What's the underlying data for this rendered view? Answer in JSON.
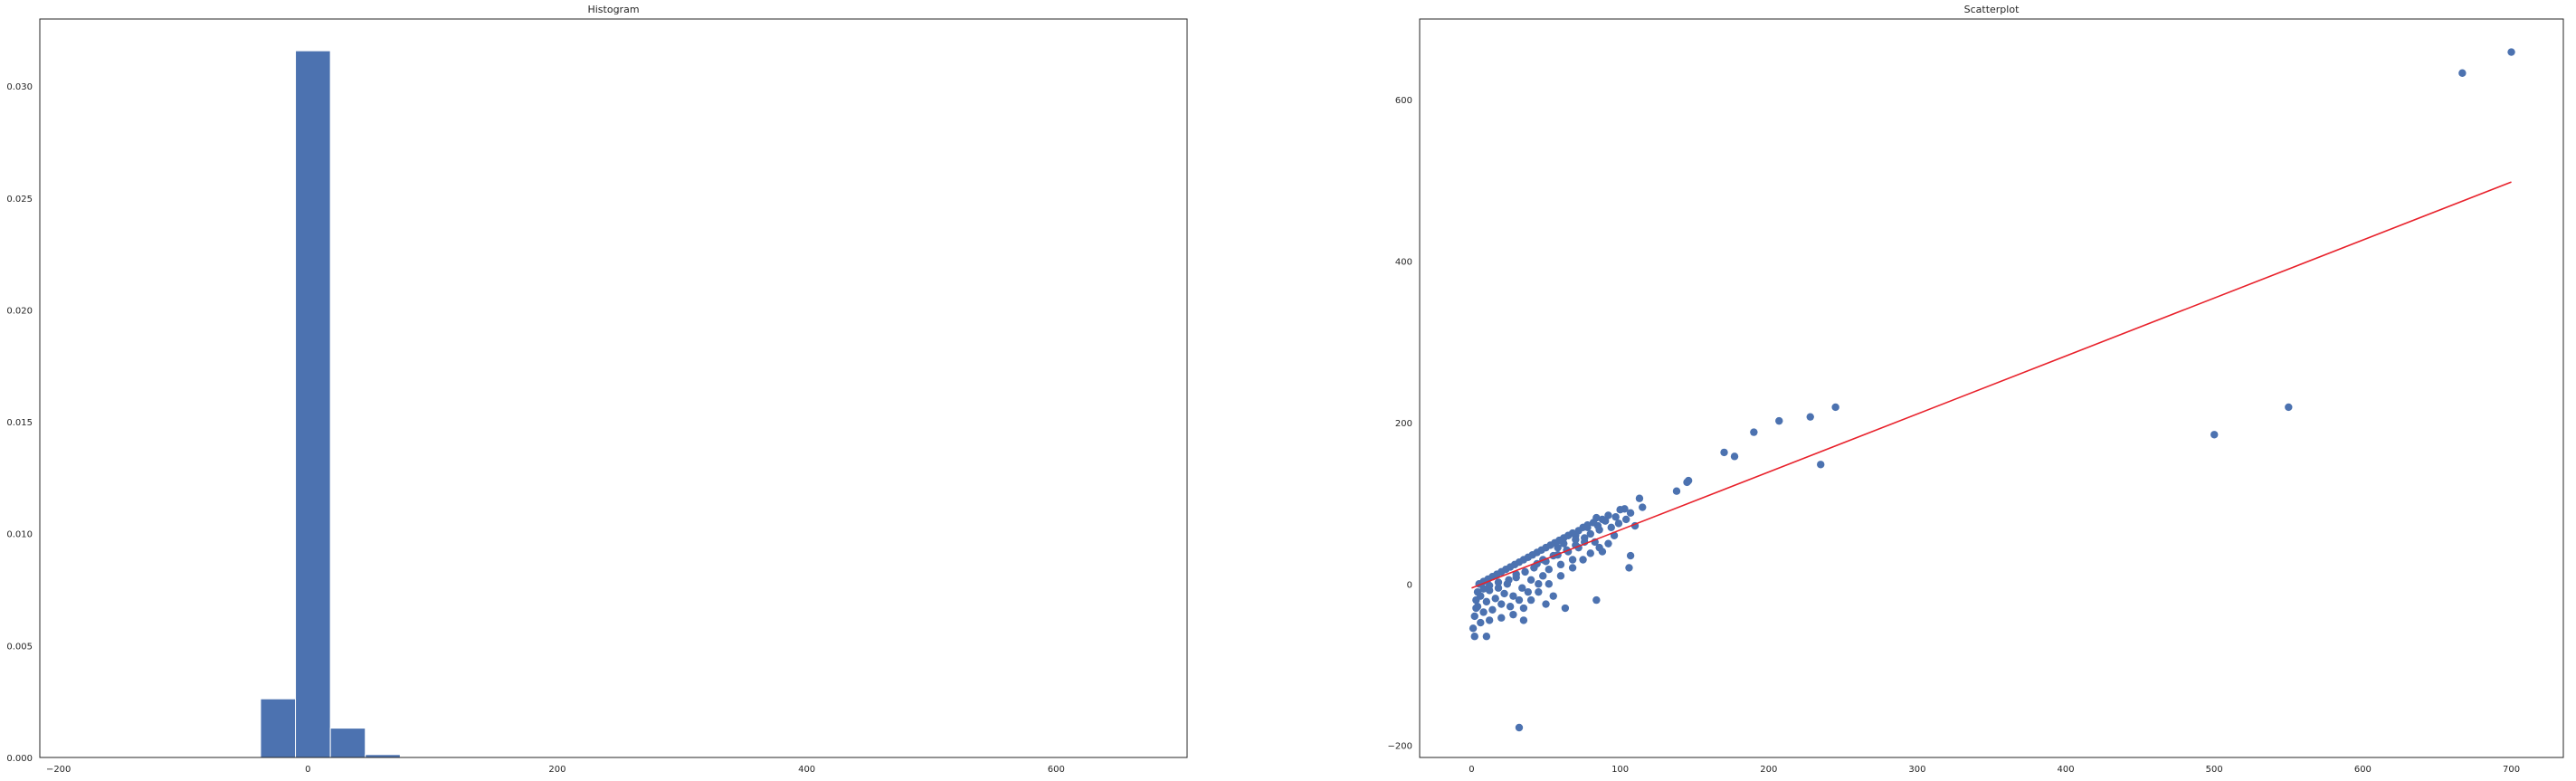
{
  "chart_data": [
    {
      "type": "bar",
      "title": "Histogram",
      "xlabel": "",
      "ylabel": "",
      "xlim": [
        -215,
        705
      ],
      "ylim": [
        0,
        0.033
      ],
      "x_ticks": [
        -200,
        0,
        200,
        400,
        600
      ],
      "y_ticks": [
        0,
        0.005,
        0.01,
        0.015,
        0.02,
        0.025,
        0.03
      ],
      "x_tick_labels": [
        "−200",
        "0",
        "200",
        "400",
        "600"
      ],
      "y_tick_labels": [
        "0.000",
        "0.005",
        "0.010",
        "0.015",
        "0.020",
        "0.025",
        "0.030"
      ],
      "bins": [
        {
          "x0": -38,
          "x1": -10,
          "value": 0.00262
        },
        {
          "x0": -10,
          "x1": 18,
          "value": 0.03158
        },
        {
          "x0": 18,
          "x1": 46,
          "value": 0.00131
        },
        {
          "x0": 46,
          "x1": 74,
          "value": 0.00013
        }
      ],
      "color": "#4c72b0",
      "grid": false
    },
    {
      "type": "scatter",
      "title": "Scatterplot",
      "xlabel": "",
      "ylabel": "",
      "xlim": [
        -35,
        735
      ],
      "ylim": [
        -215,
        700
      ],
      "x_ticks": [
        0,
        100,
        200,
        300,
        400,
        500,
        600,
        700
      ],
      "y_ticks": [
        -200,
        0,
        200,
        400,
        600
      ],
      "x_tick_labels": [
        "0",
        "100",
        "200",
        "300",
        "400",
        "500",
        "600",
        "700"
      ],
      "y_tick_labels": [
        "−200",
        "0",
        "200",
        "400",
        "600"
      ],
      "points": [
        [
          667,
          633
        ],
        [
          700,
          659
        ],
        [
          550,
          219
        ],
        [
          500,
          185
        ],
        [
          245,
          219
        ],
        [
          235,
          148
        ],
        [
          228,
          207
        ],
        [
          207,
          202
        ],
        [
          190,
          188
        ],
        [
          177,
          158
        ],
        [
          170,
          163
        ],
        [
          146,
          128
        ],
        [
          145,
          126
        ],
        [
          138,
          115
        ],
        [
          113,
          106
        ],
        [
          115,
          95
        ],
        [
          110,
          72
        ],
        [
          107,
          35
        ],
        [
          106,
          20
        ],
        [
          107,
          88
        ],
        [
          103,
          93
        ],
        [
          97,
          83
        ],
        [
          90,
          78
        ],
        [
          85,
          72
        ],
        [
          84,
          82
        ],
        [
          86,
          67
        ],
        [
          83,
          52
        ],
        [
          80,
          62
        ],
        [
          78,
          70
        ],
        [
          76,
          57
        ],
        [
          72,
          45
        ],
        [
          70,
          60
        ],
        [
          68,
          30
        ],
        [
          65,
          40
        ],
        [
          60,
          24
        ],
        [
          58,
          45
        ],
        [
          55,
          35
        ],
        [
          52,
          18
        ],
        [
          50,
          28
        ],
        [
          48,
          10
        ],
        [
          45,
          0
        ],
        [
          42,
          20
        ],
        [
          40,
          5
        ],
        [
          38,
          -10
        ],
        [
          36,
          15
        ],
        [
          34,
          -5
        ],
        [
          32,
          -20
        ],
        [
          30,
          8
        ],
        [
          28,
          -15
        ],
        [
          26,
          -28
        ],
        [
          24,
          0
        ],
        [
          22,
          -12
        ],
        [
          20,
          -25
        ],
        [
          18,
          -5
        ],
        [
          16,
          -18
        ],
        [
          14,
          -32
        ],
        [
          12,
          -8
        ],
        [
          10,
          -22
        ],
        [
          8,
          -35
        ],
        [
          6,
          -15
        ],
        [
          4,
          -28
        ],
        [
          2,
          -40
        ],
        [
          1,
          -55
        ],
        [
          2,
          -65
        ],
        [
          10,
          -65
        ],
        [
          35,
          -45
        ],
        [
          63,
          -30
        ],
        [
          50,
          -25
        ],
        [
          55,
          -15
        ],
        [
          84,
          -20
        ],
        [
          32,
          -178
        ],
        [
          70,
          55
        ],
        [
          62,
          50
        ],
        [
          5,
          0
        ],
        [
          8,
          3
        ],
        [
          11,
          6
        ],
        [
          14,
          9
        ],
        [
          17,
          12
        ],
        [
          20,
          15
        ],
        [
          23,
          18
        ],
        [
          26,
          21
        ],
        [
          29,
          24
        ],
        [
          32,
          27
        ],
        [
          35,
          30
        ],
        [
          38,
          33
        ],
        [
          41,
          36
        ],
        [
          44,
          39
        ],
        [
          47,
          42
        ],
        [
          50,
          45
        ],
        [
          53,
          48
        ],
        [
          56,
          51
        ],
        [
          59,
          54
        ],
        [
          62,
          57
        ],
        [
          65,
          60
        ],
        [
          68,
          63
        ],
        [
          72,
          66
        ],
        [
          75,
          70
        ],
        [
          78,
          73
        ],
        [
          82,
          76
        ],
        [
          88,
          80
        ],
        [
          92,
          85
        ],
        [
          100,
          92
        ],
        [
          96,
          60
        ],
        [
          92,
          50
        ],
        [
          88,
          40
        ],
        [
          75,
          30
        ],
        [
          68,
          20
        ],
        [
          60,
          10
        ],
        [
          52,
          0
        ],
        [
          45,
          -10
        ],
        [
          40,
          -20
        ],
        [
          35,
          -30
        ],
        [
          28,
          -38
        ],
        [
          20,
          -42
        ],
        [
          12,
          -45
        ],
        [
          6,
          -48
        ],
        [
          30,
          12
        ],
        [
          25,
          5
        ],
        [
          18,
          2
        ],
        [
          12,
          -2
        ],
        [
          8,
          -6
        ],
        [
          4,
          -10
        ],
        [
          3,
          -20
        ],
        [
          3,
          -30
        ],
        [
          44,
          25
        ],
        [
          48,
          30
        ],
        [
          58,
          36
        ],
        [
          64,
          42
        ],
        [
          70,
          48
        ],
        [
          76,
          52
        ],
        [
          80,
          38
        ],
        [
          86,
          45
        ],
        [
          94,
          70
        ],
        [
          99,
          75
        ],
        [
          104,
          80
        ]
      ],
      "point_color": "#4c72b0",
      "fit_line": {
        "x": [
          0,
          700
        ],
        "y": [
          -5,
          498
        ],
        "color": "#e8212b"
      },
      "grid": false
    }
  ]
}
